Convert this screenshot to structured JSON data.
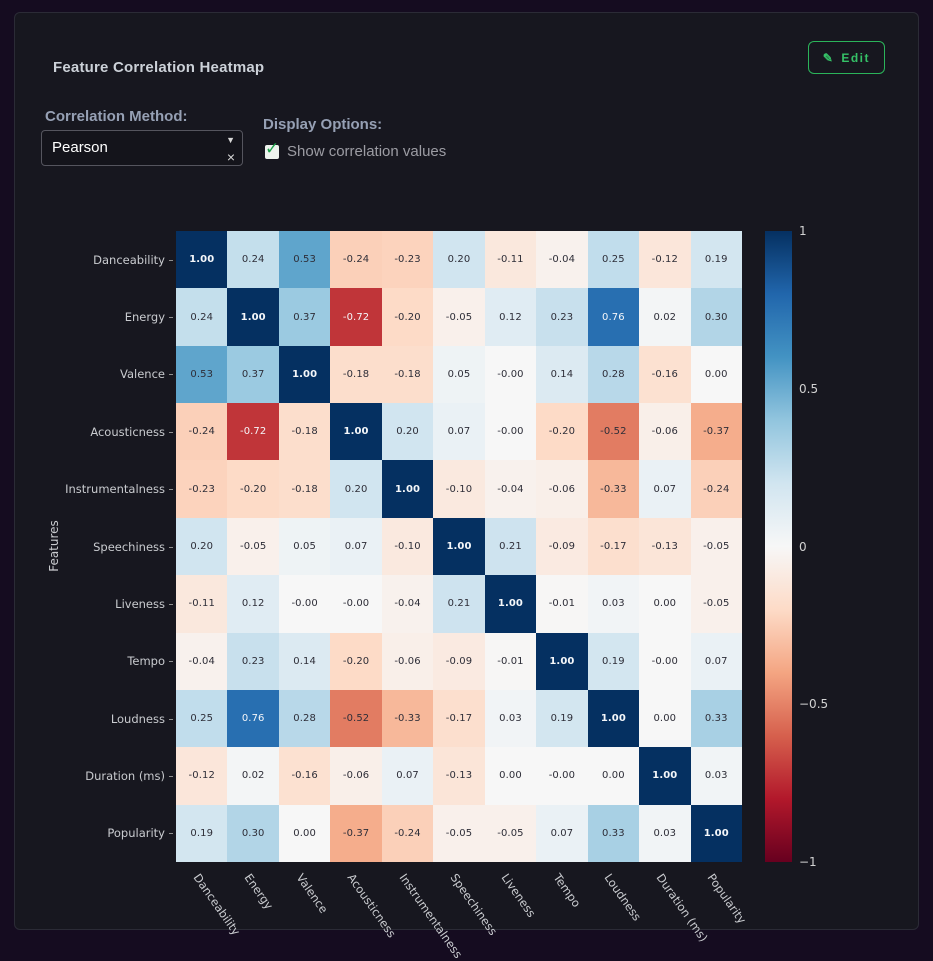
{
  "panel": {
    "title": "Feature Correlation Heatmap",
    "edit_button_label": "Edit"
  },
  "controls": {
    "method_label": "Correlation Method:",
    "method_value": "Pearson",
    "display_label": "Display Options:",
    "show_values_label": "Show correlation values",
    "show_values_checked": true
  },
  "icons": {
    "pencil": "✎",
    "caret_down": "▼",
    "clear": "×",
    "check": "✓"
  },
  "colors": {
    "accent_green": "#2bb45a",
    "panel_bg": "#17171f",
    "page_bg": "#150c20"
  },
  "chart_data": {
    "type": "heatmap",
    "ylabel": "Features",
    "zmin": -1,
    "zmax": 1,
    "show_values": true,
    "features": [
      "Danceability",
      "Energy",
      "Valence",
      "Acousticness",
      "Instrumentalness",
      "Speechiness",
      "Liveness",
      "Tempo",
      "Loudness",
      "Duration (ms)",
      "Popularity"
    ],
    "matrix": [
      [
        "1.00",
        "0.24",
        "0.53",
        "-0.24",
        "-0.23",
        "0.20",
        "-0.11",
        "-0.04",
        "0.25",
        "-0.12",
        "0.19"
      ],
      [
        "0.24",
        "1.00",
        "0.37",
        "-0.72",
        "-0.20",
        "-0.05",
        "0.12",
        "0.23",
        "0.76",
        "0.02",
        "0.30"
      ],
      [
        "0.53",
        "0.37",
        "1.00",
        "-0.18",
        "-0.18",
        "0.05",
        "-0.00",
        "0.14",
        "0.28",
        "-0.16",
        "0.00"
      ],
      [
        "-0.24",
        "-0.72",
        "-0.18",
        "1.00",
        "0.20",
        "0.07",
        "-0.00",
        "-0.20",
        "-0.52",
        "-0.06",
        "-0.37"
      ],
      [
        "-0.23",
        "-0.20",
        "-0.18",
        "0.20",
        "1.00",
        "-0.10",
        "-0.04",
        "-0.06",
        "-0.33",
        "0.07",
        "-0.24"
      ],
      [
        "0.20",
        "-0.05",
        "0.05",
        "0.07",
        "-0.10",
        "1.00",
        "0.21",
        "-0.09",
        "-0.17",
        "-0.13",
        "-0.05"
      ],
      [
        "-0.11",
        "0.12",
        "-0.00",
        "-0.00",
        "-0.04",
        "0.21",
        "1.00",
        "-0.01",
        "0.03",
        "0.00",
        "-0.05"
      ],
      [
        "-0.04",
        "0.23",
        "0.14",
        "-0.20",
        "-0.06",
        "-0.09",
        "-0.01",
        "1.00",
        "0.19",
        "-0.00",
        "0.07"
      ],
      [
        "0.25",
        "0.76",
        "0.28",
        "-0.52",
        "-0.33",
        "-0.17",
        "0.03",
        "0.19",
        "1.00",
        "0.00",
        "0.33"
      ],
      [
        "-0.12",
        "0.02",
        "-0.16",
        "-0.06",
        "0.07",
        "-0.13",
        "0.00",
        "-0.00",
        "0.00",
        "1.00",
        "0.03"
      ],
      [
        "0.19",
        "0.30",
        "0.00",
        "-0.37",
        "-0.24",
        "-0.05",
        "-0.05",
        "0.07",
        "0.33",
        "0.03",
        "1.00"
      ]
    ],
    "colorscale": {
      "name": "RdBu",
      "stops": [
        {
          "t": -1.0,
          "color": "#67001f"
        },
        {
          "t": -0.8,
          "color": "#b2182b"
        },
        {
          "t": -0.6,
          "color": "#d6604d"
        },
        {
          "t": -0.4,
          "color": "#f4a582"
        },
        {
          "t": -0.2,
          "color": "#fddbc7"
        },
        {
          "t": 0.0,
          "color": "#f7f7f7"
        },
        {
          "t": 0.2,
          "color": "#d1e5f0"
        },
        {
          "t": 0.4,
          "color": "#92c5de"
        },
        {
          "t": 0.6,
          "color": "#4393c3"
        },
        {
          "t": 0.8,
          "color": "#2166ac"
        },
        {
          "t": 1.0,
          "color": "#053061"
        }
      ]
    },
    "colorbar": {
      "ticks": [
        {
          "label": "1",
          "value": 1
        },
        {
          "label": "0.5",
          "value": 0.5
        },
        {
          "label": "0",
          "value": 0
        },
        {
          "label": "−0.5",
          "value": -0.5
        },
        {
          "label": "−1",
          "value": -1
        }
      ]
    }
  }
}
